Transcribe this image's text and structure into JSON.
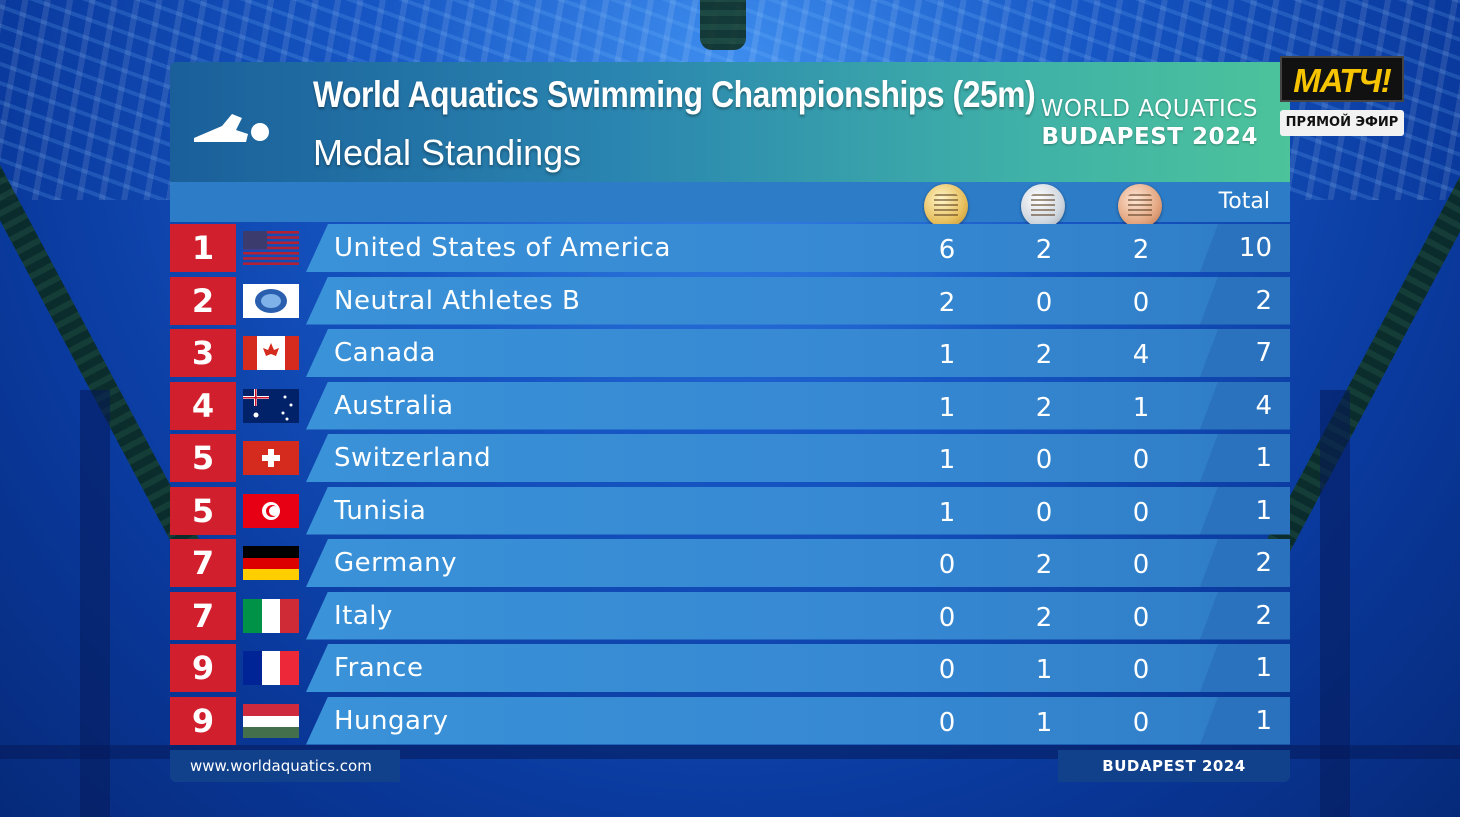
{
  "header": {
    "title": "World Aquatics Swimming Championships (25m)",
    "subtitle": "Medal Standings",
    "brand_line1": "WORLD AQUATICS",
    "brand_line2": "BUDAPEST 2024"
  },
  "columns": {
    "total_label": "Total"
  },
  "standings": [
    {
      "rank": "1",
      "country": "United States of America",
      "gold": "6",
      "silver": "2",
      "bronze": "2",
      "total": "10",
      "flag": "usa"
    },
    {
      "rank": "2",
      "country": "Neutral Athletes B",
      "gold": "2",
      "silver": "0",
      "bronze": "0",
      "total": "2",
      "flag": "neutral"
    },
    {
      "rank": "3",
      "country": "Canada",
      "gold": "1",
      "silver": "2",
      "bronze": "4",
      "total": "7",
      "flag": "canada"
    },
    {
      "rank": "4",
      "country": "Australia",
      "gold": "1",
      "silver": "2",
      "bronze": "1",
      "total": "4",
      "flag": "australia"
    },
    {
      "rank": "5",
      "country": "Switzerland",
      "gold": "1",
      "silver": "0",
      "bronze": "0",
      "total": "1",
      "flag": "switzerland"
    },
    {
      "rank": "5",
      "country": "Tunisia",
      "gold": "1",
      "silver": "0",
      "bronze": "0",
      "total": "1",
      "flag": "tunisia"
    },
    {
      "rank": "7",
      "country": "Germany",
      "gold": "0",
      "silver": "2",
      "bronze": "0",
      "total": "2",
      "flag": "germany"
    },
    {
      "rank": "7",
      "country": "Italy",
      "gold": "0",
      "silver": "2",
      "bronze": "0",
      "total": "2",
      "flag": "italy"
    },
    {
      "rank": "9",
      "country": "France",
      "gold": "0",
      "silver": "1",
      "bronze": "0",
      "total": "1",
      "flag": "france"
    },
    {
      "rank": "9",
      "country": "Hungary",
      "gold": "0",
      "silver": "1",
      "bronze": "0",
      "total": "1",
      "flag": "hungary"
    }
  ],
  "footer": {
    "website": "www.worldaquatics.com",
    "event": "BUDAPEST 2024"
  },
  "broadcaster": {
    "logo_text": "МАТЧ!",
    "live_label": "ПРЯМОЙ ЭФИР"
  },
  "colors": {
    "rank_red": "#d11f2e",
    "row_blue": "#3688d2",
    "header_teal": "#4cc39b"
  }
}
